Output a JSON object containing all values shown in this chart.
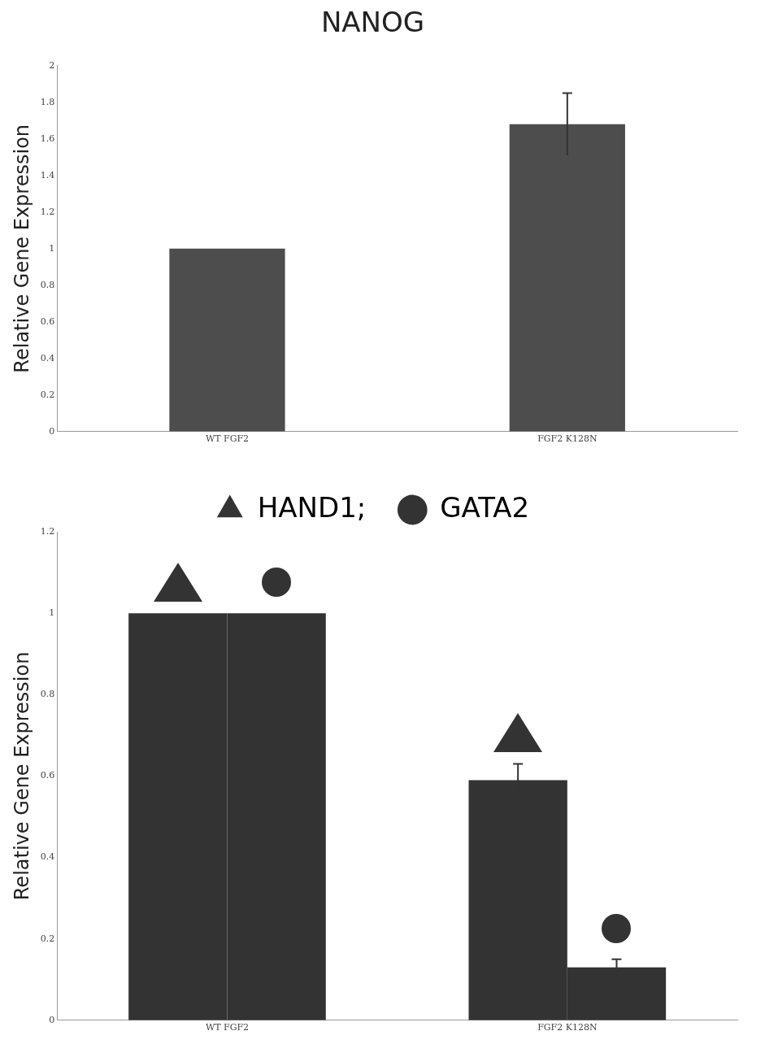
{
  "chart_data": [
    {
      "type": "bar",
      "title": "NANOG",
      "ylabel": "Relative Gene Expression",
      "categories": [
        "WT FGF2",
        "FGF2 K128N"
      ],
      "values": [
        1.0,
        1.68
      ],
      "errors": [
        null,
        0.17
      ],
      "color": "#4d4d4d",
      "ylim": [
        0,
        2
      ],
      "yticks": [
        0,
        0.2,
        0.4,
        0.6,
        0.8,
        1,
        1.2,
        1.4,
        1.6,
        1.8,
        2
      ],
      "grid": false,
      "legend": false
    },
    {
      "type": "bar",
      "ylabel": "Relative Gene Expression",
      "categories": [
        "WT FGF2",
        "FGF2 K128N"
      ],
      "series": [
        {
          "name": "HAND1;",
          "color": "#333333",
          "marker": "triangle",
          "values": [
            1.0,
            0.59
          ],
          "errors": [
            null,
            0.04
          ]
        },
        {
          "name": "GATA2",
          "color": "#333333",
          "marker": "circle",
          "values": [
            1.0,
            0.13
          ],
          "errors": [
            null,
            0.02
          ]
        }
      ],
      "ylim": [
        0,
        1.2
      ],
      "yticks": [
        0,
        0.2,
        0.4,
        0.6,
        0.8,
        1,
        1.2
      ],
      "grid": false,
      "legend": "top"
    }
  ]
}
